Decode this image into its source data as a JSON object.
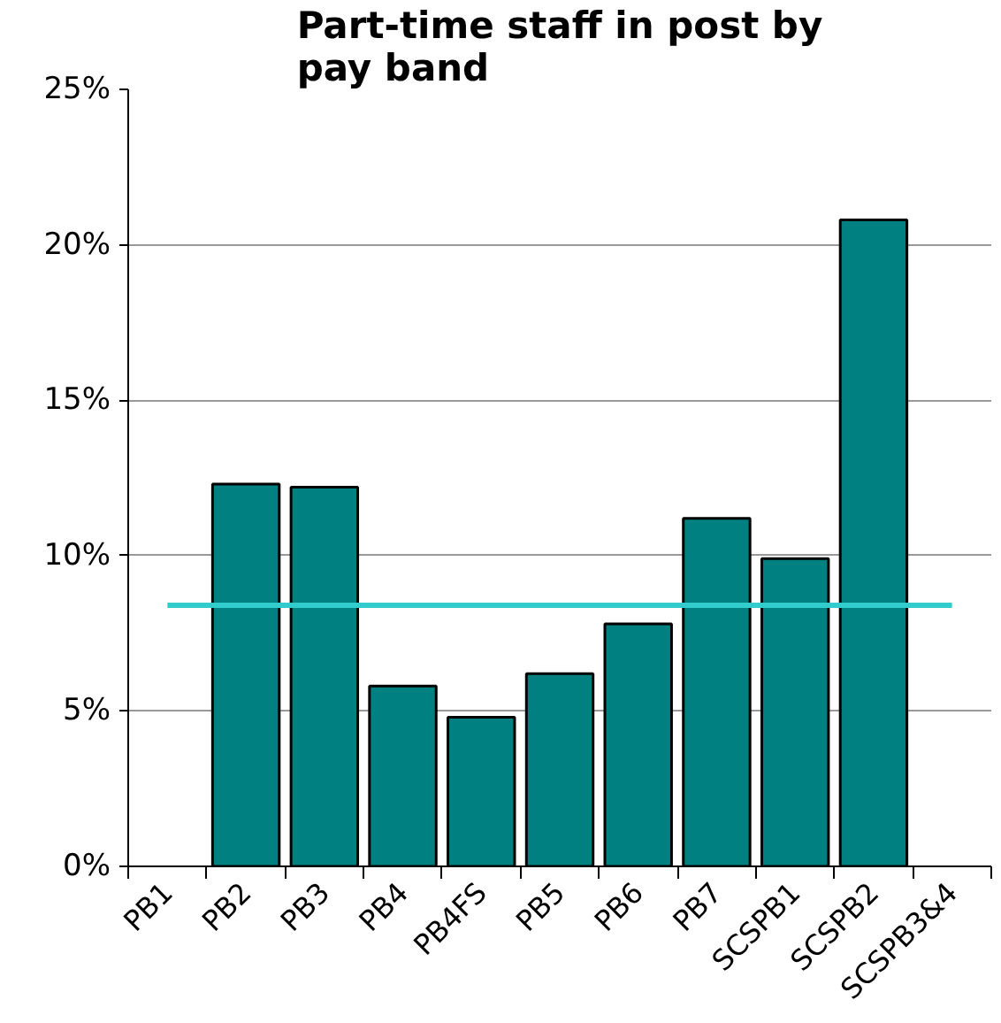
{
  "chart_data": {
    "type": "bar",
    "title": "Part-time staff in post by pay band",
    "categories": [
      "PB1",
      "PB2",
      "PB3",
      "PB4",
      "PB4FS",
      "PB5",
      "PB6",
      "PB7",
      "SCSPB1",
      "SCSPB2",
      "SCSPB3&4"
    ],
    "values": [
      null,
      12.3,
      12.2,
      5.8,
      4.8,
      6.2,
      7.8,
      11.2,
      9.9,
      20.8,
      null
    ],
    "color": "#008080",
    "ylim": [
      0,
      25
    ],
    "yticks": [
      {
        "value": 0,
        "label": "0%"
      },
      {
        "value": 5,
        "label": "5%"
      },
      {
        "value": 10,
        "label": "10%"
      },
      {
        "value": 15,
        "label": "15%"
      },
      {
        "value": 20,
        "label": "20%"
      },
      {
        "value": 25,
        "label": "25%"
      }
    ],
    "ref_lines": [
      {
        "axis": "y",
        "value": 8.4,
        "color": "#33cccc"
      }
    ],
    "grid": "y"
  }
}
